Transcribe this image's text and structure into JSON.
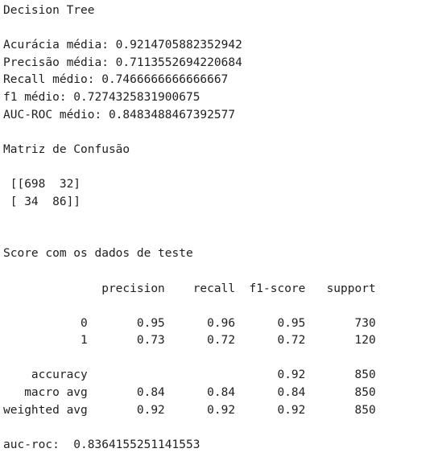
{
  "output": {
    "lines": [
      "Decision Tree",
      "",
      "Acurácia média: 0.9214705882352942",
      "Precisão média: 0.7113552694220684",
      "Recall médio: 0.7466666666666667",
      "f1 médio: 0.7274325831900675",
      "AUC-ROC médio: 0.8483488467392577",
      "",
      "Matriz de Confusão",
      "",
      " [[698  32]",
      " [ 34  86]]",
      "",
      "",
      "Score com os dados de teste",
      "",
      "              precision    recall  f1-score   support",
      "",
      "           0       0.95      0.96      0.95       730",
      "           1       0.73      0.72      0.72       120",
      "",
      "    accuracy                           0.92       850",
      "   macro avg       0.84      0.84      0.84       850",
      "weighted avg       0.92      0.92      0.92       850",
      "",
      "auc-roc:  0.8364155251141553"
    ]
  }
}
